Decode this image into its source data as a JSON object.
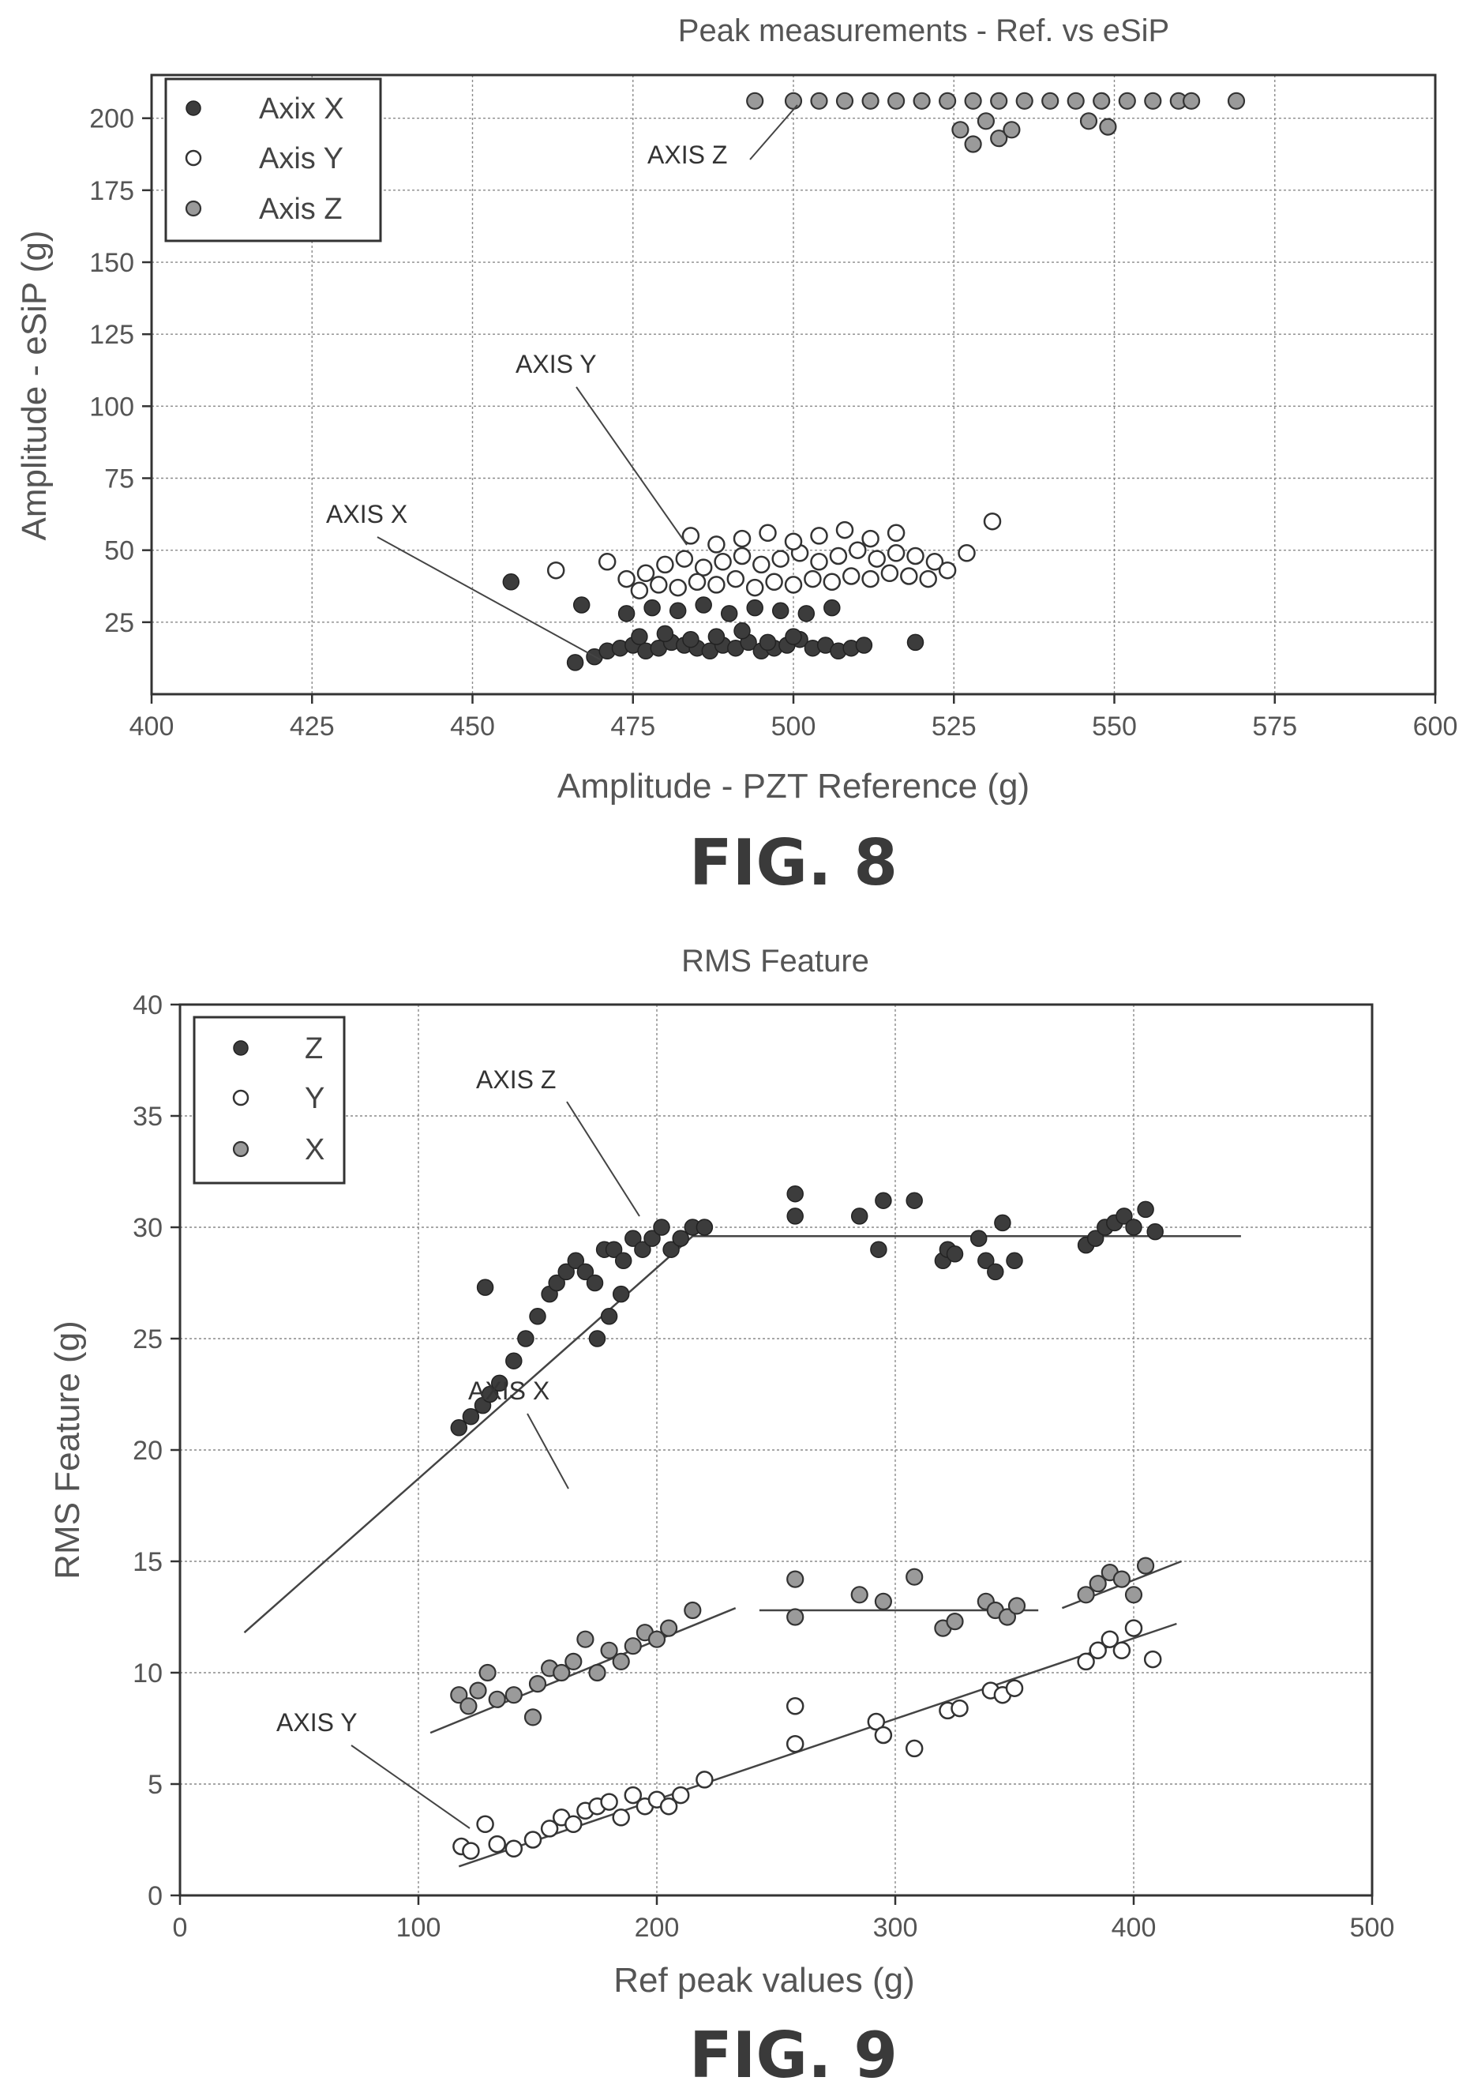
{
  "chart_data": [
    {
      "type": "scatter",
      "title": "Peak measurements - Ref. vs eSiP",
      "xlabel": "Amplitude - PZT Reference (g)",
      "ylabel": "Amplitude - eSiP (g)",
      "xlim": [
        400,
        600
      ],
      "ylim": [
        0,
        215
      ],
      "xticks": [
        "400",
        "425",
        "450",
        "475",
        "500",
        "525",
        "550",
        "575",
        "600"
      ],
      "yticks": [
        "25",
        "50",
        "75",
        "100",
        "125",
        "150",
        "175",
        "200"
      ],
      "grid": true,
      "legend_position": "top-left",
      "figure_label": "FIG. 8",
      "series": [
        {
          "name": "Axix X",
          "marker": "filled",
          "x": [
            456,
            467,
            466,
            469,
            471,
            473,
            475,
            477,
            479,
            481,
            483,
            485,
            487,
            489,
            491,
            493,
            495,
            497,
            499,
            501,
            503,
            505,
            507,
            509,
            511,
            474,
            478,
            482,
            486,
            490,
            494,
            498,
            502,
            506,
            476,
            480,
            484,
            488,
            492,
            496,
            500,
            519
          ],
          "y": [
            39,
            31,
            11,
            13,
            15,
            16,
            17,
            15,
            16,
            18,
            17,
            16,
            15,
            17,
            16,
            18,
            15,
            16,
            17,
            19,
            16,
            17,
            15,
            16,
            17,
            28,
            30,
            29,
            31,
            28,
            30,
            29,
            28,
            30,
            20,
            21,
            19,
            20,
            22,
            18,
            20,
            18
          ]
        },
        {
          "name": "Axis Y",
          "marker": "open",
          "x": [
            463,
            471,
            474,
            477,
            480,
            483,
            486,
            489,
            492,
            495,
            498,
            501,
            504,
            507,
            510,
            513,
            516,
            519,
            522,
            476,
            479,
            482,
            485,
            488,
            491,
            494,
            497,
            500,
            503,
            506,
            509,
            512,
            515,
            518,
            521,
            484,
            488,
            492,
            496,
            500,
            504,
            508,
            512,
            516,
            524,
            527,
            531
          ],
          "y": [
            43,
            46,
            40,
            42,
            45,
            47,
            44,
            46,
            48,
            45,
            47,
            49,
            46,
            48,
            50,
            47,
            49,
            48,
            46,
            36,
            38,
            37,
            39,
            38,
            40,
            37,
            39,
            38,
            40,
            39,
            41,
            40,
            42,
            41,
            40,
            55,
            52,
            54,
            56,
            53,
            55,
            57,
            54,
            56,
            43,
            49,
            60
          ]
        },
        {
          "name": "Axis Z",
          "marker": "hatched",
          "x": [
            494,
            500,
            504,
            508,
            512,
            516,
            520,
            524,
            528,
            532,
            536,
            540,
            544,
            548,
            552,
            556,
            560,
            562,
            569,
            526,
            528,
            530,
            532,
            534,
            546,
            549
          ],
          "y": [
            206,
            206,
            206,
            206,
            206,
            206,
            206,
            206,
            206,
            206,
            206,
            206,
            206,
            206,
            206,
            206,
            206,
            206,
            206,
            196,
            191,
            199,
            193,
            196,
            199,
            197
          ]
        }
      ],
      "annotations": [
        "AXIS Z",
        "AXIS Y",
        "AXIS X"
      ]
    },
    {
      "type": "scatter",
      "title": "RMS Feature",
      "xlabel": "Ref peak values (g)",
      "ylabel": "RMS Feature (g)",
      "xlim": [
        0,
        500
      ],
      "ylim": [
        0,
        40
      ],
      "xticks": [
        "0",
        "100",
        "200",
        "300",
        "400",
        "500"
      ],
      "yticks": [
        "0",
        "5",
        "10",
        "15",
        "20",
        "25",
        "30",
        "35",
        "40"
      ],
      "grid": true,
      "legend_position": "top-left",
      "figure_label": "FIG. 9",
      "series": [
        {
          "name": "Z",
          "marker": "filled",
          "x": [
            117,
            122,
            127,
            130,
            134,
            140,
            145,
            150,
            155,
            158,
            162,
            166,
            170,
            174,
            178,
            182,
            186,
            190,
            194,
            198,
            202,
            206,
            210,
            215,
            220,
            258,
            258,
            285,
            293,
            295,
            308,
            320,
            322,
            325,
            335,
            338,
            342,
            345,
            350,
            380,
            384,
            388,
            392,
            396,
            400,
            405,
            409,
            128,
            175,
            180,
            185
          ],
          "y": [
            21,
            21.5,
            22,
            22.5,
            23,
            24,
            25,
            26,
            27,
            27.5,
            28,
            28.5,
            28,
            27.5,
            29,
            29,
            28.5,
            29.5,
            29,
            29.5,
            30,
            29,
            29.5,
            30,
            30,
            31.5,
            30.5,
            30.5,
            29,
            31.2,
            31.2,
            28.5,
            29,
            28.8,
            29.5,
            28.5,
            28,
            30.2,
            28.5,
            29.2,
            29.5,
            30,
            30.2,
            30.5,
            30,
            30.8,
            29.8,
            27.3,
            25,
            26,
            27
          ]
        },
        {
          "name": "Y",
          "marker": "open",
          "x": [
            118,
            122,
            128,
            133,
            140,
            148,
            155,
            160,
            165,
            170,
            175,
            180,
            185,
            190,
            195,
            200,
            205,
            210,
            220,
            258,
            258,
            292,
            295,
            308,
            322,
            327,
            340,
            345,
            350,
            380,
            385,
            390,
            395,
            400,
            408
          ],
          "y": [
            2.2,
            2.0,
            3.2,
            2.3,
            2.1,
            2.5,
            3.0,
            3.5,
            3.2,
            3.8,
            4.0,
            4.2,
            3.5,
            4.5,
            4.0,
            4.3,
            4.0,
            4.5,
            5.2,
            8.5,
            6.8,
            7.8,
            7.2,
            6.6,
            8.3,
            8.4,
            9.2,
            9.0,
            9.3,
            10.5,
            11.0,
            11.5,
            11.0,
            12.0,
            10.6
          ]
        },
        {
          "name": "X",
          "marker": "hatched",
          "x": [
            117,
            121,
            125,
            129,
            133,
            140,
            148,
            150,
            155,
            160,
            165,
            170,
            175,
            180,
            185,
            190,
            195,
            200,
            205,
            215,
            258,
            258,
            285,
            295,
            308,
            320,
            325,
            338,
            342,
            347,
            351,
            380,
            385,
            390,
            395,
            400,
            405
          ],
          "y": [
            9.0,
            8.5,
            9.2,
            10.0,
            8.8,
            9.0,
            8.0,
            9.5,
            10.2,
            10.0,
            10.5,
            11.5,
            10.0,
            11.0,
            10.5,
            11.2,
            11.8,
            11.5,
            12.0,
            12.8,
            14.2,
            12.5,
            13.5,
            13.2,
            14.3,
            12.0,
            12.3,
            13.2,
            12.8,
            12.5,
            13.0,
            13.5,
            14.0,
            14.5,
            14.2,
            13.5,
            14.8
          ]
        }
      ],
      "fit_lines": [
        {
          "series": "Z",
          "points": [
            [
              27,
              11.8
            ],
            [
              215,
              29.6
            ],
            [
              445,
              29.6
            ]
          ]
        },
        {
          "series": "X",
          "points": [
            [
              105,
              7.3
            ],
            [
              233,
              12.9
            ]
          ]
        },
        {
          "series": "X",
          "points": [
            [
              243,
              12.8
            ],
            [
              360,
              12.8
            ]
          ]
        },
        {
          "series": "X",
          "points": [
            [
              370,
              12.9
            ],
            [
              420,
              15.0
            ]
          ]
        },
        {
          "series": "Y",
          "points": [
            [
              117,
              1.3
            ],
            [
              418,
              12.2
            ]
          ]
        }
      ],
      "annotations": [
        "AXIS Z",
        "AXIS X",
        "AXIS Y"
      ]
    }
  ]
}
